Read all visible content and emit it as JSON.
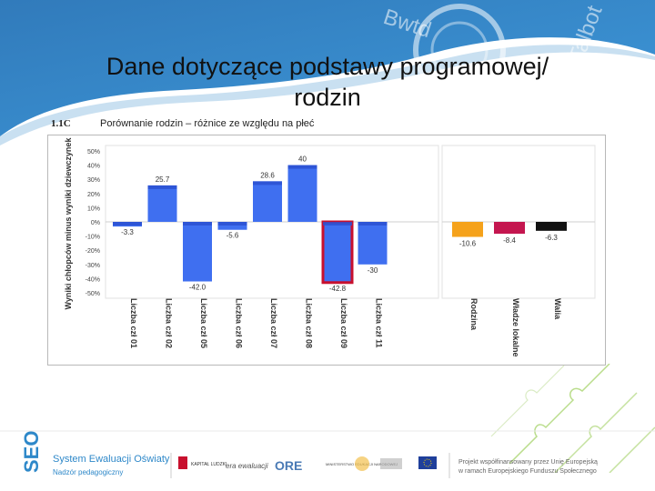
{
  "slide": {
    "title_line1": "Dane dotyczące podstawy programowej/",
    "title_line2": "rodzin"
  },
  "watermark": {
    "text1": "Bwtd",
    "text2": "Talbot"
  },
  "chart_header": {
    "code": "1.1C",
    "heading": "Porównanie rodzin – różnice ze względu na płeć"
  },
  "chart_data": {
    "type": "bar",
    "ylabel": "Wyniki chłopców minus wyniki dziewczynek",
    "ylim": [
      -50,
      50
    ],
    "yticks": [
      50,
      40,
      30,
      20,
      10,
      0,
      -10,
      -20,
      -30,
      -40,
      -50
    ],
    "ytick_labels": [
      "50%",
      "40%",
      "30%",
      "20%",
      "10%",
      "0%",
      "-10%",
      "-20%",
      "-30%",
      "-40%",
      "-50%"
    ],
    "groups": [
      {
        "categories": [
          "Liczba czł 01",
          "Liczba czł 02",
          "Liczba czł 05",
          "Liczba czł 06",
          "Liczba czł 07",
          "Liczba czł 08",
          "Liczba czł 09",
          "Liczba czł 11"
        ],
        "values": [
          -3.3,
          25.7,
          -42.0,
          -5.6,
          28.6,
          40,
          -42.8,
          -30
        ],
        "value_labels": [
          "-3.3",
          "25.7",
          "-42.0",
          "-5.6",
          "28.6",
          "40",
          "-42.8",
          "-30"
        ],
        "color": "#3f6ff0",
        "highlight_index": 6,
        "highlight_color": "#c8102e"
      },
      {
        "categories": [
          "Rodzina",
          "Władze lokalne",
          "Walia"
        ],
        "values": [
          -10.6,
          -8.4,
          -6.3
        ],
        "value_labels": [
          "-10.6",
          "-8.4",
          "-6.3"
        ],
        "colors": [
          "#f5a21b",
          "#c4164f",
          "#111111"
        ]
      }
    ]
  },
  "footer": {
    "seo_logo": "SEO",
    "system_name": "System Ewaluacji Oświaty",
    "subtitle": "Nadzór pedagogiczny",
    "partner1": "KAPITAŁ LUDZKI",
    "partner2": "era ewaluacji",
    "partner3": "ORE",
    "partner4": "MINISTERSTWO EDUKACJI NARODOWEJ",
    "eu_text_line1": "Projekt współfinansowany przez Unię Europejską",
    "eu_text_line2": "w ramach Europejskiego Funduszu Społecznego"
  }
}
